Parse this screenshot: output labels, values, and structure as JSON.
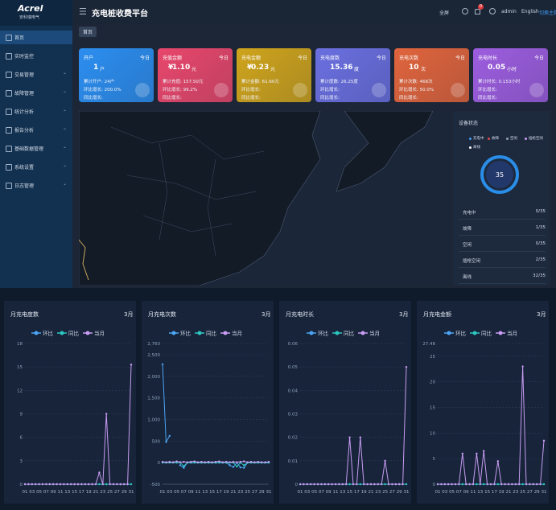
{
  "sidebar": {
    "logo": "Acrel",
    "logo_sub": "安科瑞电气",
    "menu": [
      "首页",
      "实时监控",
      "交易管理",
      "故障管理",
      "统计分析",
      "报告分析",
      "基础数据管理",
      "系统设置",
      "日志管理"
    ]
  },
  "header": {
    "title": "充电桩收费平台",
    "fullscreen": "全屏",
    "badge": "0",
    "user": "admin",
    "lang": "English",
    "theme": "切换主题"
  },
  "tab": "首页",
  "cards": [
    {
      "title": "开户",
      "period": "今日",
      "value": "1",
      "unit": "户",
      "color": "#2c8ef0",
      "lines": [
        "累计开户: 24户",
        "环比增长: 200.0%",
        "同比增长:"
      ]
    },
    {
      "title": "充值金额",
      "period": "今日",
      "prefix": "¥",
      "value": "1.10",
      "unit": "元",
      "color": "#e8476c",
      "lines": [
        "累计充值: 157.50元",
        "环比增长: 99.2%",
        "同比增长:"
      ]
    },
    {
      "title": "充电金额",
      "period": "今日",
      "prefix": "¥",
      "value": "0.23",
      "unit": "元",
      "color": "#cfa41c",
      "lines": [
        "累计金额: 61.60元",
        "环比增长:",
        "同比增长:"
      ]
    },
    {
      "title": "充电度数",
      "period": "今日",
      "value": "15.36",
      "unit": "度",
      "color": "#6a6fe0",
      "lines": [
        "累计度数: 26.25度",
        "环比增长:",
        "同比增长:"
      ]
    },
    {
      "title": "充电次数",
      "period": "今日",
      "value": "10",
      "unit": "次",
      "color": "#e0643c",
      "lines": [
        "累计次数: 468次",
        "环比增长: 50.0%",
        "同比增长:"
      ]
    },
    {
      "title": "充电时长",
      "period": "今日",
      "value": "0.05",
      "unit": "小时",
      "color": "#9d5ddf",
      "lines": [
        "累计时长: 0.153小时",
        "环比增长:",
        "同比增长:"
      ]
    }
  ],
  "device": {
    "title": "设备状态",
    "legend": [
      "充电中",
      "故障",
      "空闲",
      "插枪空闲",
      "离线"
    ],
    "center": "35",
    "rows": [
      {
        "label": "充电中",
        "value": "0/35"
      },
      {
        "label": "故障",
        "value": "1/35"
      },
      {
        "label": "空闲",
        "value": "0/35"
      },
      {
        "label": "插枪空闲",
        "value": "2/35"
      },
      {
        "label": "离线",
        "value": "32/35"
      }
    ]
  },
  "chart_data": [
    {
      "type": "line",
      "title": "月充电度数",
      "period": "3月",
      "categories": [
        "01",
        null,
        "03",
        null,
        "05",
        null,
        "07",
        null,
        "09",
        null,
        "11",
        null,
        "13",
        null,
        "15",
        null,
        "17",
        null,
        "19",
        null,
        "21",
        null,
        "23",
        null,
        "25",
        null,
        "27",
        null,
        "29",
        null,
        "31"
      ],
      "ylim": [
        0,
        18
      ],
      "yticks": [
        0,
        3,
        6,
        9,
        12,
        15,
        18
      ],
      "grid": true,
      "series": [
        {
          "name": "环比",
          "color": "#4da6f5",
          "values": [
            0,
            0,
            0,
            0,
            0,
            0,
            0,
            0,
            0,
            0,
            0,
            0,
            0,
            0,
            0,
            0,
            0,
            0,
            0,
            0,
            0,
            0,
            0,
            0,
            0,
            0,
            0,
            0,
            0,
            0,
            0
          ]
        },
        {
          "name": "同比",
          "color": "#2ec7c0",
          "values": [
            0,
            0,
            0,
            0,
            0,
            0,
            0,
            0,
            0,
            0,
            0,
            0,
            0,
            0,
            0,
            0,
            0,
            0,
            0,
            0,
            0,
            0,
            0,
            0,
            0,
            0,
            0,
            0,
            0,
            0,
            0
          ]
        },
        {
          "name": "当月",
          "color": "#c99cf3",
          "values": [
            0,
            0,
            0,
            0,
            0,
            0,
            0,
            0,
            0,
            0,
            0,
            0,
            0,
            0,
            0,
            0,
            0,
            0,
            0,
            0,
            0,
            1.5,
            0,
            9,
            0,
            0,
            0,
            0,
            0,
            0,
            15.3
          ]
        }
      ]
    },
    {
      "type": "line",
      "title": "月充电次数",
      "period": "3月",
      "categories": [
        "01",
        null,
        "03",
        null,
        "05",
        null,
        "07",
        null,
        "09",
        null,
        "11",
        null,
        "13",
        null,
        "15",
        null,
        "17",
        null,
        "19",
        null,
        "21",
        null,
        "23",
        null,
        "25",
        null,
        "27",
        null,
        "29",
        null,
        "31"
      ],
      "ylim": [
        -500,
        2760
      ],
      "yticks": [
        -500,
        0,
        500,
        {
          "value": 1000,
          "label": "1,000"
        },
        {
          "value": 1500,
          "label": "1,500"
        },
        {
          "value": 2000,
          "label": "2,000"
        },
        {
          "value": 2500,
          "label": "2,500"
        },
        {
          "value": 2760,
          "label": "2,760"
        }
      ],
      "grid": true,
      "series": [
        {
          "name": "环比",
          "color": "#4da6f5",
          "values": [
            2280,
            480,
            620,
            null,
            null,
            -60,
            -120,
            0,
            0,
            0,
            0,
            0,
            0,
            0,
            0,
            0,
            0,
            0,
            0,
            -60,
            -100,
            0,
            -110,
            -120,
            0,
            0,
            0,
            0,
            0,
            0,
            0
          ]
        },
        {
          "name": "同比",
          "color": "#2ec7c0",
          "values": [
            0,
            0,
            0,
            0,
            0,
            0,
            -80,
            0,
            0,
            0,
            0,
            0,
            0,
            0,
            0,
            0,
            0,
            0,
            0,
            0,
            0,
            -90,
            0,
            -60,
            0,
            0,
            0,
            0,
            0,
            0,
            0
          ]
        },
        {
          "name": "当月",
          "color": "#c99cf3",
          "values": [
            20,
            10,
            20,
            10,
            30,
            10,
            20,
            10,
            20,
            30,
            10,
            20,
            10,
            20,
            10,
            20,
            30,
            10,
            20,
            10,
            20,
            10,
            20,
            30,
            10,
            20,
            10,
            20,
            10,
            10,
            20
          ]
        }
      ]
    },
    {
      "type": "line",
      "title": "月充电时长",
      "period": "3月",
      "categories": [
        "01",
        null,
        "03",
        null,
        "05",
        null,
        "07",
        null,
        "09",
        null,
        "11",
        null,
        "13",
        null,
        "15",
        null,
        "17",
        null,
        "19",
        null,
        "21",
        null,
        "23",
        null,
        "25",
        null,
        "27",
        null,
        "29",
        null,
        "31"
      ],
      "ylim": [
        0,
        0.06
      ],
      "yticks": [
        0,
        0.01,
        0.02,
        0.03,
        0.04,
        0.05,
        0.06
      ],
      "grid": true,
      "series": [
        {
          "name": "环比",
          "color": "#4da6f5",
          "values": [
            0,
            0,
            0,
            0,
            0,
            0,
            0,
            0,
            0,
            0,
            0,
            0,
            0,
            0,
            0,
            0,
            0,
            0,
            0,
            0,
            0,
            0,
            0,
            0,
            0,
            0,
            0,
            0,
            0,
            0,
            0
          ]
        },
        {
          "name": "同比",
          "color": "#2ec7c0",
          "values": [
            0,
            0,
            0,
            0,
            0,
            0,
            0,
            0,
            0,
            0,
            0,
            0,
            0,
            0,
            0,
            0,
            0,
            0,
            0,
            0,
            0,
            0,
            0,
            0,
            0,
            0,
            0,
            0,
            0,
            0,
            0
          ]
        },
        {
          "name": "当月",
          "color": "#c99cf3",
          "values": [
            0,
            0,
            0,
            0,
            0,
            0,
            0,
            0,
            0,
            0,
            0,
            0,
            0,
            0,
            0.02,
            0,
            0,
            0.02,
            0,
            0,
            0,
            0,
            0,
            0,
            0.01,
            0,
            0,
            0,
            0,
            0,
            0.05
          ]
        }
      ]
    },
    {
      "type": "line",
      "title": "月充电金额",
      "period": "3月",
      "categories": [
        "01",
        null,
        "03",
        null,
        "05",
        null,
        "07",
        null,
        "09",
        null,
        "11",
        null,
        "13",
        null,
        "15",
        null,
        "17",
        null,
        "19",
        null,
        "21",
        null,
        "23",
        null,
        "25",
        null,
        "27",
        null,
        "29",
        null,
        "31"
      ],
      "ylim": [
        0,
        27.48
      ],
      "yticks": [
        0,
        5,
        10,
        15,
        20,
        25,
        27.48
      ],
      "grid": true,
      "series": [
        {
          "name": "环比",
          "color": "#4da6f5",
          "values": [
            0,
            0,
            0,
            0,
            0,
            0,
            0,
            0,
            0,
            0,
            0,
            0,
            0,
            0,
            0,
            0,
            0,
            0,
            0,
            0,
            0,
            0,
            0,
            0,
            0,
            0,
            0,
            0,
            0,
            0,
            0
          ]
        },
        {
          "name": "同比",
          "color": "#2ec7c0",
          "values": [
            0,
            0,
            0,
            0,
            0,
            0,
            0,
            0,
            0,
            0,
            0,
            0,
            0,
            0,
            0,
            0,
            0,
            0,
            0,
            0,
            0,
            0,
            0,
            0,
            0,
            0,
            0,
            0,
            0,
            0,
            0
          ]
        },
        {
          "name": "当月",
          "color": "#c99cf3",
          "values": [
            0,
            0,
            0,
            0,
            0,
            0,
            0,
            6,
            0,
            0,
            0,
            6,
            0,
            6.5,
            0,
            0,
            0,
            4.5,
            0,
            0,
            0,
            0,
            0,
            0,
            23,
            0,
            0,
            0,
            0,
            0,
            8.5
          ]
        }
      ]
    }
  ]
}
